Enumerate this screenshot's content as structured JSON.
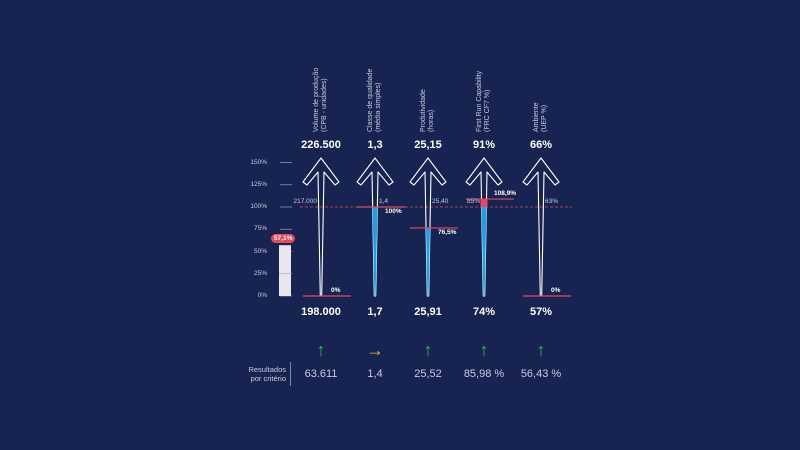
{
  "chart_data": {
    "type": "bar",
    "title": "",
    "y_ticks": [
      "150%",
      "125%",
      "100%",
      "75%",
      "50%",
      "25%",
      "0%"
    ],
    "summary_bar": {
      "value_pct": 57.1,
      "badge": "57,1%"
    },
    "columns": [
      {
        "title_line1": "Volume de produção",
        "title_line2": "(CPB - unidades)",
        "top_value": "226.500",
        "bottom_value": "198.000",
        "target_label": "217.000",
        "current_pct": 0,
        "pct_label": "0%",
        "over": false,
        "trend": "up",
        "result": "63.611"
      },
      {
        "title_line1": "Classe de qualidade",
        "title_line2": "(média simples)",
        "top_value": "1,3",
        "bottom_value": "1,7",
        "target_label": "1,4",
        "current_pct": 100,
        "pct_label": "100%",
        "over": false,
        "trend": "right",
        "result": "1,4"
      },
      {
        "title_line1": "Produtividade",
        "title_line2": "(horas)",
        "top_value": "25,15",
        "bottom_value": "25,91",
        "target_label": "25,40",
        "current_pct": 76.5,
        "pct_label": "76,5%",
        "over": false,
        "trend": "up",
        "result": "25,52"
      },
      {
        "title_line1": "First Run Capability",
        "title_line2": "(FRC CF7 %)",
        "top_value": "91%",
        "bottom_value": "74%",
        "target_label": "85%",
        "current_pct": 108.9,
        "pct_label": "108,9%",
        "over": true,
        "trend": "up",
        "result": "85,98 %"
      },
      {
        "title_line1": "Ambiente",
        "title_line2": "(UEP %)",
        "top_value": "66%",
        "bottom_value": "57%",
        "target_label": "63%",
        "current_pct": 0,
        "pct_label": "0%",
        "over": false,
        "trend": "up",
        "result": "56,43 %"
      }
    ],
    "results_label_line1": "Resultados",
    "results_label_line2": "por critério"
  },
  "colors": {
    "background": "#172350",
    "fill": "#1ea0e6",
    "over": "#e8475f",
    "trend_up": "#2fb65a",
    "trend_right": "#f0b429",
    "outline": "#ffffff"
  }
}
